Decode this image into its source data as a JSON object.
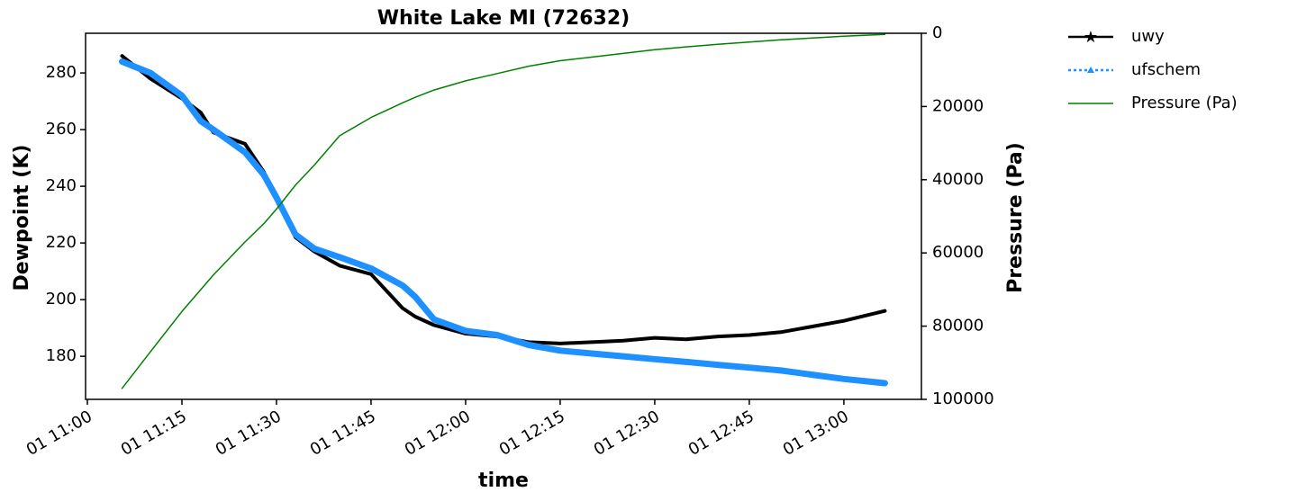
{
  "chart_data": {
    "type": "line",
    "title": "White Lake MI (72632)",
    "x_label": "time",
    "y_label": "Dewpoint (K)",
    "y2_label": "Pressure (Pa)",
    "x": [
      "01 11:05:30",
      "01 11:10",
      "01 11:15",
      "01 11:18",
      "01 11:20",
      "01 11:25",
      "01 11:28",
      "01 11:30",
      "01 11:33",
      "01 11:36",
      "01 11:40",
      "01 11:45",
      "01 11:50",
      "01 11:52",
      "01 11:55",
      "01 12:00",
      "01 12:05",
      "01 12:10",
      "01 12:15",
      "01 12:20",
      "01 12:25",
      "01 12:30",
      "01 12:35",
      "01 12:40",
      "01 12:45",
      "01 12:50",
      "01 12:55",
      "01 13:00",
      "01 13:06:30"
    ],
    "xlim": [
      "01 10:59:43",
      "01 13:12:18"
    ],
    "xticks": [
      "01 11:00",
      "01 11:15",
      "01 11:30",
      "01 11:45",
      "01 12:00",
      "01 12:15",
      "01 12:30",
      "01 12:45",
      "01 13:00"
    ],
    "ylim": [
      164.8,
      294
    ],
    "yticks": [
      180,
      200,
      220,
      240,
      260,
      280
    ],
    "y2lim": [
      100000,
      0
    ],
    "y2ticks": [
      0,
      20000,
      40000,
      60000,
      80000,
      100000
    ],
    "y2_color": "#008000",
    "legend": "outside-right",
    "series": [
      {
        "name": "uwy",
        "color": "#000000",
        "marker": "star",
        "line": "solid",
        "values": [
          286,
          278,
          271,
          266,
          259,
          255,
          245,
          236,
          222,
          217,
          212,
          209,
          197,
          194,
          191,
          188,
          187,
          185,
          184.5,
          185,
          185.5,
          186.5,
          186,
          187,
          187.5,
          188.5,
          190.5,
          192.5,
          196
        ]
      },
      {
        "name": "ufschem",
        "color": "#1e90ff",
        "marker": "triangle",
        "line": "dotted",
        "values": [
          284,
          280,
          272,
          263,
          260,
          252,
          244,
          236,
          223,
          218,
          215,
          211,
          205,
          201,
          193,
          189,
          187.5,
          184,
          182,
          181,
          180,
          179,
          178,
          177,
          176,
          175,
          173.5,
          172,
          170.5
        ]
      },
      {
        "name": "Pressure (Pa)",
        "color": "#008000",
        "marker": "none",
        "line": "solid",
        "axis": "y2",
        "values": [
          97000,
          87000,
          76000,
          70000,
          66000,
          57000,
          52000,
          48000,
          41500,
          36000,
          28000,
          23000,
          19000,
          17500,
          15500,
          13000,
          11000,
          9000,
          7500,
          6500,
          5500,
          4500,
          3700,
          3000,
          2400,
          1800,
          1300,
          800,
          300
        ]
      }
    ]
  }
}
